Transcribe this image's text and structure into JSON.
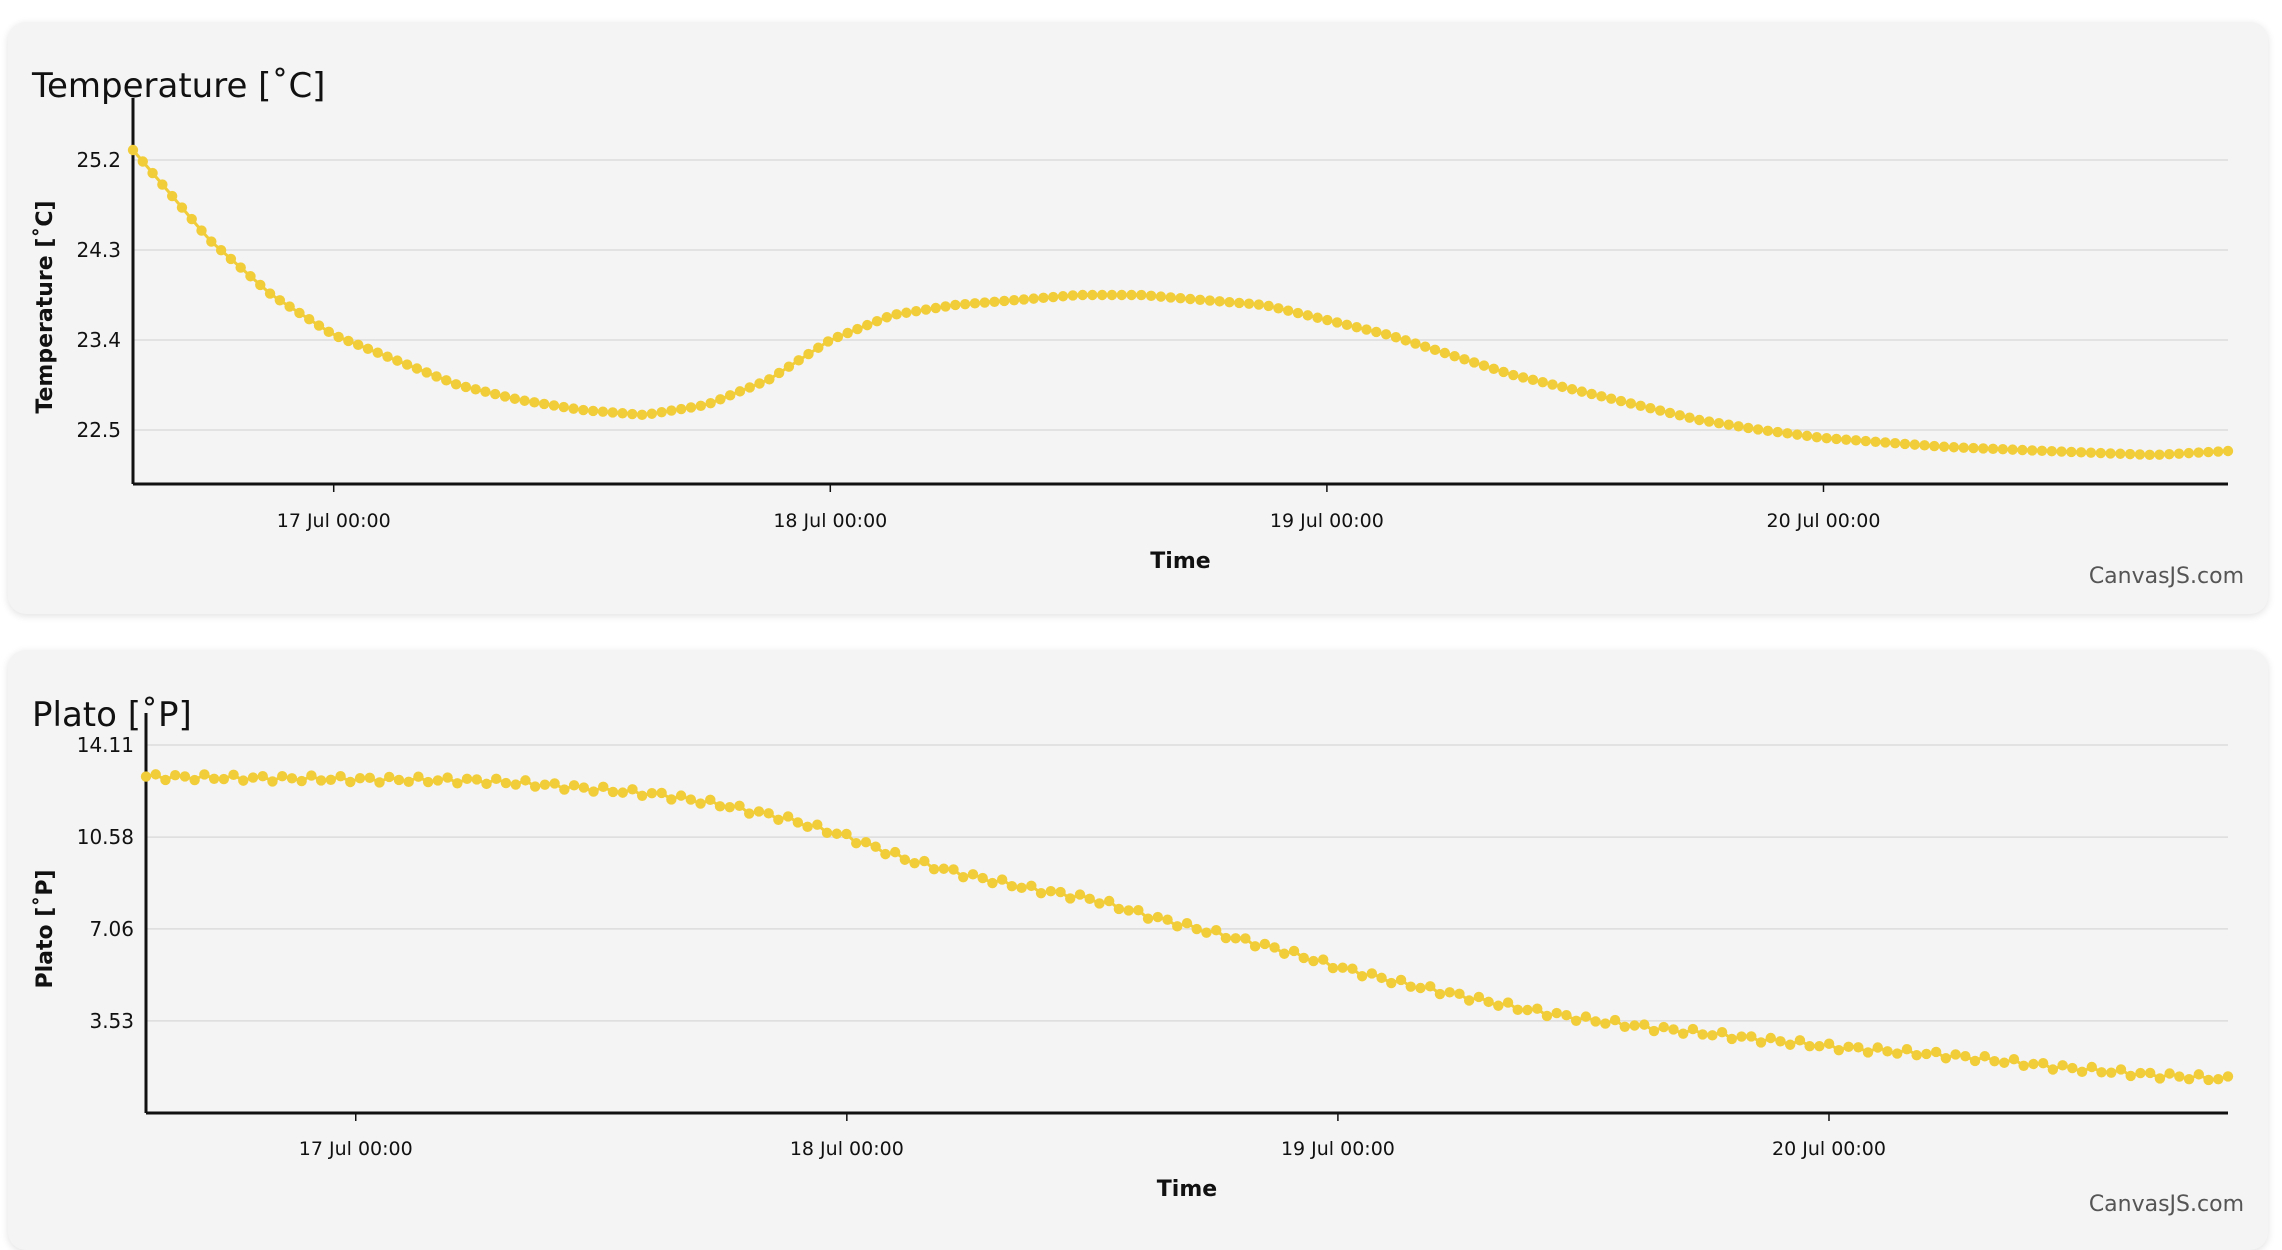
{
  "colors": {
    "series": "#f2cd3a",
    "axis": "#111111",
    "grid": "#dcdcdc"
  },
  "chart_data": [
    {
      "type": "scatter",
      "title": "Temperature [˚C]",
      "xlabel": "Time",
      "ylabel": "Temperature [˚C]",
      "credit": "CanvasJS.com",
      "x_ticks": [
        "17 Jul 00:00",
        "18 Jul 00:00",
        "19 Jul 00:00",
        "20 Jul 00:00"
      ],
      "x_tick_dates": [
        "2023-07-17T00:00",
        "2023-07-18T00:00",
        "2023-07-19T00:00",
        "2023-07-20T00:00"
      ],
      "xlim": [
        "2023-07-16T14:18",
        "2023-07-20T19:33"
      ],
      "y_ticks": [
        "25.2",
        "24.3",
        "23.4",
        "22.5"
      ],
      "ylim": [
        21.96,
        25.5
      ],
      "grid": true,
      "series": [
        {
          "points": [
            [
              "2023-07-16T14:18",
              25.3
            ],
            [
              "2023-07-16T18:00",
              24.4
            ],
            [
              "2023-07-16T21:00",
              23.85
            ],
            [
              "2023-07-17T00:00",
              23.45
            ],
            [
              "2023-07-17T03:00",
              23.2
            ],
            [
              "2023-07-17T06:00",
              22.95
            ],
            [
              "2023-07-17T09:00",
              22.8
            ],
            [
              "2023-07-17T12:00",
              22.7
            ],
            [
              "2023-07-17T15:00",
              22.65
            ],
            [
              "2023-07-17T18:00",
              22.75
            ],
            [
              "2023-07-17T21:00",
              23.0
            ],
            [
              "2023-07-18T00:00",
              23.4
            ],
            [
              "2023-07-18T03:00",
              23.65
            ],
            [
              "2023-07-18T06:00",
              23.75
            ],
            [
              "2023-07-18T09:00",
              23.8
            ],
            [
              "2023-07-18T12:00",
              23.85
            ],
            [
              "2023-07-18T15:00",
              23.85
            ],
            [
              "2023-07-18T18:00",
              23.8
            ],
            [
              "2023-07-18T21:00",
              23.75
            ],
            [
              "2023-07-19T00:00",
              23.6
            ],
            [
              "2023-07-19T03:00",
              23.45
            ],
            [
              "2023-07-19T06:00",
              23.25
            ],
            [
              "2023-07-19T09:00",
              23.05
            ],
            [
              "2023-07-19T12:00",
              22.9
            ],
            [
              "2023-07-19T15:00",
              22.75
            ],
            [
              "2023-07-19T18:00",
              22.6
            ],
            [
              "2023-07-19T21:00",
              22.5
            ],
            [
              "2023-07-20T00:00",
              22.42
            ],
            [
              "2023-07-20T06:00",
              22.33
            ],
            [
              "2023-07-20T12:00",
              22.28
            ],
            [
              "2023-07-20T16:00",
              22.25
            ],
            [
              "2023-07-20T19:33",
              22.29
            ]
          ]
        }
      ]
    },
    {
      "type": "scatter",
      "title": "Plato [˚P]",
      "xlabel": "Time",
      "ylabel": "Plato [˚P]",
      "credit": "CanvasJS.com",
      "x_ticks": [
        "17 Jul 00:00",
        "18 Jul 00:00",
        "19 Jul 00:00",
        "20 Jul 00:00"
      ],
      "x_tick_dates": [
        "2023-07-17T00:00",
        "2023-07-18T00:00",
        "2023-07-19T00:00",
        "2023-07-20T00:00"
      ],
      "xlim": [
        "2023-07-16T13:45",
        "2023-07-20T19:30"
      ],
      "y_ticks": [
        "14.11",
        "10.58",
        "7.06",
        "3.53"
      ],
      "ylim": [
        0,
        14.11
      ],
      "grid": true,
      "series": [
        {
          "points": [
            [
              "2023-07-16T13:45",
              12.9
            ],
            [
              "2023-07-16T18:00",
              12.85
            ],
            [
              "2023-07-17T00:00",
              12.8
            ],
            [
              "2023-07-17T06:00",
              12.75
            ],
            [
              "2023-07-17T09:00",
              12.6
            ],
            [
              "2023-07-17T12:00",
              12.4
            ],
            [
              "2023-07-17T15:00",
              12.2
            ],
            [
              "2023-07-17T18:00",
              11.8
            ],
            [
              "2023-07-17T21:00",
              11.3
            ],
            [
              "2023-07-18T00:00",
              10.6
            ],
            [
              "2023-07-18T03:00",
              9.7
            ],
            [
              "2023-07-18T06:00",
              9.1
            ],
            [
              "2023-07-18T09:00",
              8.6
            ],
            [
              "2023-07-18T12:00",
              8.2
            ],
            [
              "2023-07-18T15:00",
              7.5
            ],
            [
              "2023-07-18T18:00",
              6.9
            ],
            [
              "2023-07-18T21:00",
              6.3
            ],
            [
              "2023-07-19T00:00",
              5.6
            ],
            [
              "2023-07-19T03:00",
              5.0
            ],
            [
              "2023-07-19T06:00",
              4.5
            ],
            [
              "2023-07-19T09:00",
              4.0
            ],
            [
              "2023-07-19T12:00",
              3.6
            ],
            [
              "2023-07-19T15:00",
              3.3
            ],
            [
              "2023-07-19T18:00",
              3.05
            ],
            [
              "2023-07-19T21:00",
              2.8
            ],
            [
              "2023-07-20T00:00",
              2.55
            ],
            [
              "2023-07-20T06:00",
              2.2
            ],
            [
              "2023-07-20T12:00",
              1.7
            ],
            [
              "2023-07-20T16:00",
              1.45
            ],
            [
              "2023-07-20T19:30",
              1.3
            ]
          ]
        }
      ]
    }
  ]
}
